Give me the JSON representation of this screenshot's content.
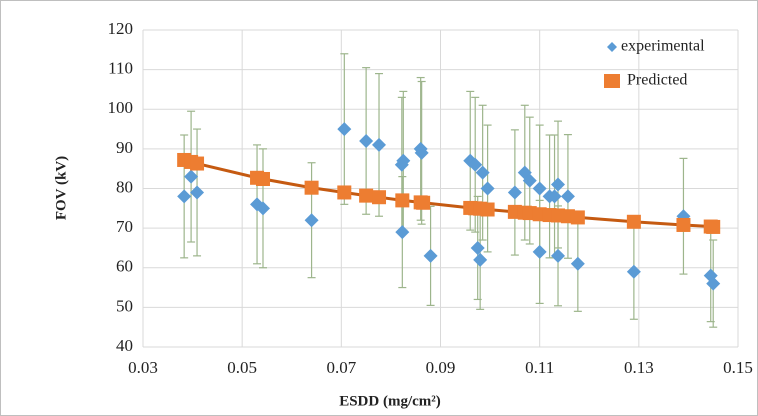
{
  "chart_data": {
    "type": "scatter",
    "x_label": "ESDD (mg/cm²)",
    "y_label": "FOV (kV)",
    "xlim": [
      0.03,
      0.15
    ],
    "xticks": [
      {
        "value": 0.03,
        "label": "0.03"
      },
      {
        "value": 0.05,
        "label": "0.05"
      },
      {
        "value": 0.07,
        "label": "0.07"
      },
      {
        "value": 0.09,
        "label": "0.09"
      },
      {
        "value": 0.11,
        "label": "0.11"
      },
      {
        "value": 0.13,
        "label": "0.13"
      },
      {
        "value": 0.15,
        "label": "0.15"
      }
    ],
    "ylim": [
      40,
      120
    ],
    "yticks": [
      40,
      50,
      60,
      70,
      80,
      90,
      100,
      110,
      120
    ],
    "grid": true,
    "legend": "top-right",
    "series": [
      {
        "name": "experimental",
        "color": "#5b9bd5",
        "marker": "diamond",
        "error_color": "#9db58c",
        "x": [
          0.0383,
          0.0397,
          0.0409,
          0.053,
          0.0542,
          0.064,
          0.0706,
          0.075,
          0.0776,
          0.0823,
          0.0822,
          0.0825,
          0.086,
          0.0862,
          0.088,
          0.096,
          0.097,
          0.0975,
          0.098,
          0.0985,
          0.0995,
          0.105,
          0.107,
          0.108,
          0.11,
          0.11,
          0.112,
          0.113,
          0.1137,
          0.1137,
          0.1157,
          0.1177,
          0.129,
          0.139,
          0.1445,
          0.145
        ],
        "values": [
          78,
          83,
          79,
          76,
          75,
          72,
          95,
          92,
          91,
          69,
          86,
          87,
          90,
          89,
          63,
          87,
          86,
          65,
          62,
          84,
          80,
          79,
          84,
          82,
          80,
          64,
          78,
          78,
          63,
          81,
          78,
          61,
          59,
          73,
          58,
          56
        ],
        "errors": [
          15.5,
          16.5,
          16,
          15,
          15,
          14.5,
          19,
          18.5,
          18,
          14,
          17,
          17.5,
          18,
          18,
          12.5,
          17.5,
          17,
          13,
          12.5,
          17,
          16,
          15.8,
          17,
          16,
          16,
          13,
          15.5,
          15.5,
          12.6,
          16,
          15.6,
          12,
          12,
          14.6,
          11.6,
          11
        ]
      },
      {
        "name": "Predicted",
        "color": "#ed7d31",
        "marker": "square",
        "line_color": "#c55a11",
        "x": [
          0.0383,
          0.0397,
          0.0409,
          0.053,
          0.0542,
          0.064,
          0.0706,
          0.075,
          0.0776,
          0.0823,
          0.086,
          0.0865,
          0.096,
          0.097,
          0.098,
          0.0995,
          0.105,
          0.107,
          0.108,
          0.11,
          0.112,
          0.1137,
          0.1157,
          0.1177,
          0.129,
          0.139,
          0.1445,
          0.145
        ],
        "values": [
          87.2,
          86.7,
          86.3,
          82.7,
          82.4,
          80.2,
          79.0,
          78.2,
          77.8,
          77.0,
          76.5,
          76.4,
          75.1,
          75.0,
          74.9,
          74.7,
          74.1,
          73.9,
          73.8,
          73.5,
          73.3,
          73.2,
          73.0,
          72.7,
          71.6,
          70.8,
          70.4,
          70.3
        ]
      }
    ]
  }
}
